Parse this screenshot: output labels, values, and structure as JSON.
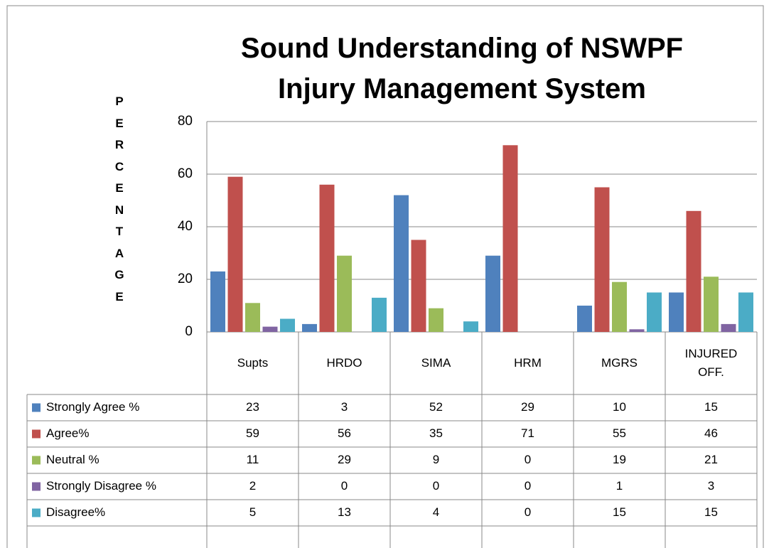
{
  "chart_data": {
    "type": "bar",
    "title": "Sound Understanding of NSWPF Injury Management System",
    "y_label": "PERCENTAGE",
    "categories": [
      "Supts",
      "HRDO",
      "SIMA",
      "HRM",
      "MGRS",
      "INJURED OFF."
    ],
    "series": [
      {
        "name": "Strongly Agree %",
        "color": "#4f81bd",
        "values": [
          23,
          3,
          52,
          29,
          10,
          15
        ]
      },
      {
        "name": "Agree%",
        "color": "#c0504d",
        "values": [
          59,
          56,
          35,
          71,
          55,
          46
        ]
      },
      {
        "name": "Neutral %",
        "color": "#9bbb59",
        "values": [
          11,
          29,
          9,
          0,
          19,
          21
        ]
      },
      {
        "name": "Strongly Disagree %",
        "color": "#8064a2",
        "values": [
          2,
          0,
          0,
          0,
          1,
          3
        ]
      },
      {
        "name": "Disagree%",
        "color": "#4bacc6",
        "values": [
          5,
          13,
          4,
          0,
          15,
          15
        ]
      }
    ],
    "ylim": [
      0,
      80
    ],
    "yticks": [
      0,
      20,
      40,
      60,
      80
    ],
    "grid": true
  }
}
